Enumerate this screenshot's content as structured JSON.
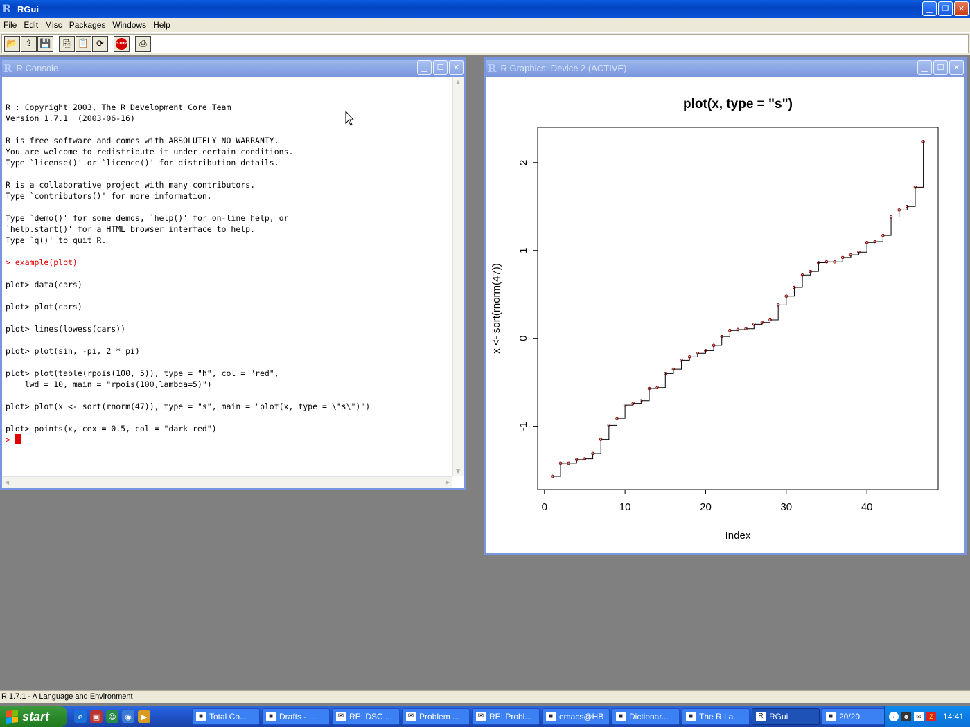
{
  "app": {
    "title": "RGui"
  },
  "menu": [
    "File",
    "Edit",
    "Misc",
    "Packages",
    "Windows",
    "Help"
  ],
  "toolbar": [
    "open-script",
    "load-workspace",
    "save-workspace",
    "copy",
    "paste",
    "copy-paste",
    "stop",
    "print"
  ],
  "console": {
    "title": "R Console",
    "lines": [
      {
        "text": "",
        "color": ""
      },
      {
        "text": "R : Copyright 2003, The R Development Core Team",
        "color": ""
      },
      {
        "text": "Version 1.7.1  (2003-06-16)",
        "color": ""
      },
      {
        "text": "",
        "color": ""
      },
      {
        "text": "R is free software and comes with ABSOLUTELY NO WARRANTY.",
        "color": ""
      },
      {
        "text": "You are welcome to redistribute it under certain conditions.",
        "color": ""
      },
      {
        "text": "Type `license()' or `licence()' for distribution details.",
        "color": ""
      },
      {
        "text": "",
        "color": ""
      },
      {
        "text": "R is a collaborative project with many contributors.",
        "color": ""
      },
      {
        "text": "Type `contributors()' for more information.",
        "color": ""
      },
      {
        "text": "",
        "color": ""
      },
      {
        "text": "Type `demo()' for some demos, `help()' for on-line help, or",
        "color": ""
      },
      {
        "text": "`help.start()' for a HTML browser interface to help.",
        "color": ""
      },
      {
        "text": "Type `q()' to quit R.",
        "color": ""
      },
      {
        "text": "",
        "color": ""
      },
      {
        "text": "> example(plot)",
        "color": "#e00000"
      },
      {
        "text": "",
        "color": ""
      },
      {
        "text": "plot> data(cars)",
        "color": ""
      },
      {
        "text": "",
        "color": ""
      },
      {
        "text": "plot> plot(cars)",
        "color": ""
      },
      {
        "text": "",
        "color": ""
      },
      {
        "text": "plot> lines(lowess(cars))",
        "color": ""
      },
      {
        "text": "",
        "color": ""
      },
      {
        "text": "plot> plot(sin, -pi, 2 * pi)",
        "color": ""
      },
      {
        "text": "",
        "color": ""
      },
      {
        "text": "plot> plot(table(rpois(100, 5)), type = \"h\", col = \"red\",",
        "color": ""
      },
      {
        "text": "    lwd = 10, main = \"rpois(100,lambda=5)\")",
        "color": ""
      },
      {
        "text": "",
        "color": ""
      },
      {
        "text": "plot> plot(x <- sort(rnorm(47)), type = \"s\", main = \"plot(x, type = \\\"s\\\")\")",
        "color": ""
      },
      {
        "text": "",
        "color": ""
      },
      {
        "text": "plot> points(x, cex = 0.5, col = \"dark red\")",
        "color": ""
      }
    ],
    "prompt": ">"
  },
  "graphics": {
    "title": "R Graphics: Device 2 (ACTIVE)"
  },
  "chart_data": {
    "type": "line",
    "subtype": "step",
    "title": "plot(x, type = \"s\")",
    "xlabel": "Index",
    "ylabel": "x <- sort(rnorm(47))",
    "xlim": [
      -0.84,
      48.84
    ],
    "ylim": [
      -1.72,
      2.4
    ],
    "xticks": [
      0,
      10,
      20,
      30,
      40
    ],
    "yticks": [
      -1,
      0,
      1,
      2
    ],
    "grid": false,
    "series": [
      {
        "point_color": "#8b0000",
        "line_color": "#000000",
        "x": [
          1,
          2,
          3,
          4,
          5,
          6,
          7,
          8,
          9,
          10,
          11,
          12,
          13,
          14,
          15,
          16,
          17,
          18,
          19,
          20,
          21,
          22,
          23,
          24,
          25,
          26,
          27,
          28,
          29,
          30,
          31,
          32,
          33,
          34,
          35,
          36,
          37,
          38,
          39,
          40,
          41,
          42,
          43,
          44,
          45,
          46,
          47
        ],
        "values": [
          -1.57,
          -1.42,
          -1.42,
          -1.38,
          -1.37,
          -1.31,
          -1.15,
          -0.99,
          -0.91,
          -0.76,
          -0.74,
          -0.71,
          -0.57,
          -0.56,
          -0.4,
          -0.35,
          -0.25,
          -0.21,
          -0.17,
          -0.14,
          -0.08,
          0.02,
          0.09,
          0.1,
          0.11,
          0.16,
          0.18,
          0.21,
          0.38,
          0.48,
          0.58,
          0.72,
          0.76,
          0.86,
          0.87,
          0.87,
          0.92,
          0.95,
          0.98,
          1.09,
          1.1,
          1.17,
          1.38,
          1.46,
          1.5,
          1.72,
          2.24
        ]
      }
    ]
  },
  "status": {
    "text": "R 1.7.1 - A Language and Environment"
  },
  "taskbar": {
    "start_label": "start",
    "tasks": [
      {
        "label": "Total Co...",
        "icon": "floppy-icon"
      },
      {
        "label": "Drafts - ...",
        "icon": "mail-client-icon"
      },
      {
        "label": "RE: DSC ...",
        "icon": "envelope-icon"
      },
      {
        "label": "Problem ...",
        "icon": "envelope-icon"
      },
      {
        "label": "RE: Probl...",
        "icon": "envelope-icon"
      },
      {
        "label": "emacs@HB",
        "icon": "emacs-icon"
      },
      {
        "label": "Dictionar...",
        "icon": "dictionary-icon"
      },
      {
        "label": "The R La...",
        "icon": "browser-icon"
      },
      {
        "label": "RGui",
        "icon": "r-icon",
        "active": true
      },
      {
        "label": "20/20",
        "icon": "game-icon"
      }
    ],
    "clock": "14:41"
  }
}
